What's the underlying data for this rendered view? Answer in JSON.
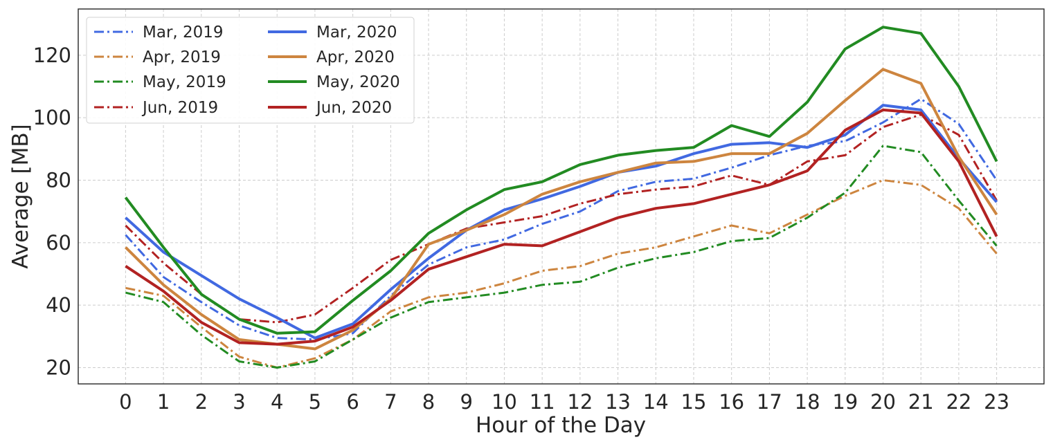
{
  "chart_data": {
    "type": "line",
    "xlabel": "Hour of the Day",
    "ylabel": "Average [MB]",
    "x": [
      0,
      1,
      2,
      3,
      4,
      5,
      6,
      7,
      8,
      9,
      10,
      11,
      12,
      13,
      14,
      15,
      16,
      17,
      18,
      19,
      20,
      21,
      22,
      23
    ],
    "xticks": [
      "0",
      "1",
      "2",
      "3",
      "4",
      "5",
      "6",
      "7",
      "8",
      "9",
      "10",
      "11",
      "12",
      "13",
      "14",
      "15",
      "16",
      "17",
      "18",
      "19",
      "20",
      "21",
      "22",
      "23"
    ],
    "xlim": [
      -1.25,
      24.25
    ],
    "ylim": [
      14.8,
      134.8
    ],
    "yticks": [
      20,
      40,
      60,
      80,
      100,
      120
    ],
    "grid": true,
    "legend_position": "top-left",
    "legend_columns": 2,
    "colors": {
      "mar": "#4169e1",
      "apr": "#cd853f",
      "may": "#228b22",
      "jun": "#b22222"
    },
    "series": [
      {
        "name": "Mar, 2019",
        "style": "dashdot",
        "color": "#4169e1",
        "values": [
          62.5,
          49,
          41,
          33.5,
          29.5,
          29,
          31,
          43,
          53,
          58.5,
          61,
          66,
          70,
          76.5,
          79.5,
          80.5,
          84,
          88,
          91,
          92.5,
          98.5,
          106,
          98,
          80
        ]
      },
      {
        "name": "Apr, 2019",
        "style": "dashdot",
        "color": "#cd853f",
        "values": [
          45.5,
          43,
          33,
          23.5,
          20,
          23,
          29,
          38,
          42.5,
          44,
          47,
          51,
          52.5,
          56.5,
          58.5,
          62,
          65.5,
          63,
          69,
          75,
          80,
          78.5,
          71,
          56.5
        ]
      },
      {
        "name": "May, 2019",
        "style": "dashdot",
        "color": "#228b22",
        "values": [
          44,
          41,
          30.5,
          22,
          20,
          22,
          29,
          36,
          41,
          42.5,
          44,
          46.5,
          47.5,
          52,
          55,
          57,
          60.5,
          61.5,
          68,
          76,
          91,
          89,
          73.5,
          59
        ]
      },
      {
        "name": "Jun, 2019",
        "style": "dashdot",
        "color": "#b22222",
        "values": [
          65.5,
          53.5,
          43.5,
          35.5,
          34.5,
          37,
          45.5,
          54.5,
          59.5,
          64.5,
          66.5,
          68.5,
          72.5,
          75.5,
          77,
          78,
          81.5,
          78.5,
          86,
          88,
          97,
          101,
          94.5,
          73.5
        ]
      },
      {
        "name": "Mar, 2020",
        "style": "solid",
        "color": "#4169e1",
        "values": [
          68,
          57,
          49.5,
          42,
          36,
          29.5,
          34,
          45,
          55,
          64,
          70.5,
          74,
          78,
          82.5,
          84.5,
          88.5,
          91.5,
          92,
          90.5,
          94.5,
          104,
          102.5,
          87,
          73
        ]
      },
      {
        "name": "Apr, 2020",
        "style": "solid",
        "color": "#cd853f",
        "values": [
          58.5,
          46.5,
          37,
          29,
          27.5,
          26,
          32,
          42,
          59.5,
          64,
          69,
          75.5,
          79.5,
          82.5,
          85.5,
          86,
          88.5,
          88.5,
          95,
          105.5,
          115.5,
          111,
          87.5,
          69
        ]
      },
      {
        "name": "May, 2020",
        "style": "solid",
        "color": "#228b22",
        "values": [
          74.5,
          58.5,
          43.5,
          35.5,
          31,
          31.5,
          41.5,
          51,
          63,
          70.5,
          77,
          79.5,
          85,
          88,
          89.5,
          90.5,
          97.5,
          94,
          105,
          122,
          129,
          127,
          110,
          86
        ]
      },
      {
        "name": "Jun, 2020",
        "style": "solid",
        "color": "#b22222",
        "values": [
          52.5,
          44.5,
          34.5,
          28,
          27.5,
          28.5,
          33,
          41.5,
          51.5,
          55.5,
          59.5,
          59,
          63.5,
          68,
          71,
          72.5,
          75.5,
          78.5,
          83,
          96,
          102.5,
          101.5,
          86,
          62
        ]
      }
    ]
  }
}
